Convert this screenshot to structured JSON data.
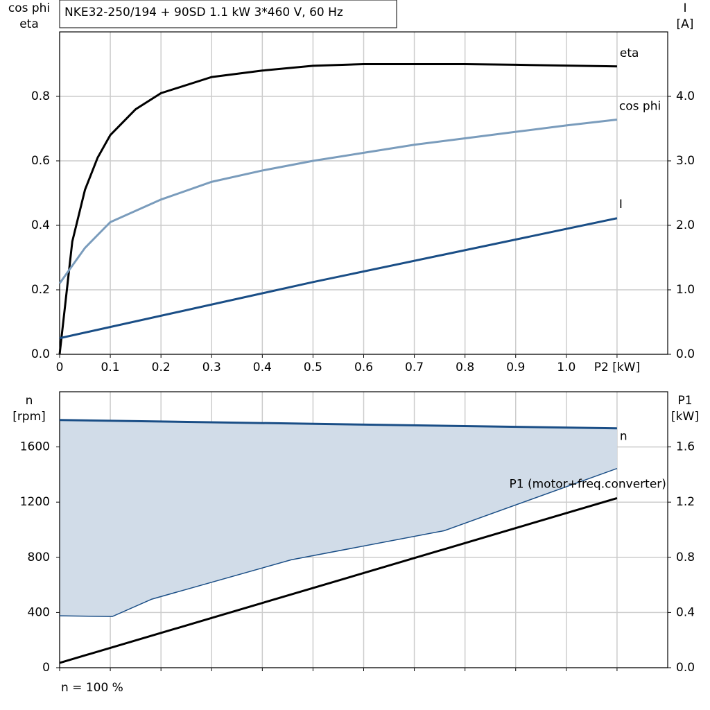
{
  "chart_data": [
    {
      "type": "line",
      "title": "NKE32-250/194 + 90SD   1.1 kW   3*460 V, 60 Hz",
      "ylabel": [
        "cos phi",
        "eta"
      ],
      "y2label": [
        "I",
        "[A]"
      ],
      "xlim": [
        0,
        1.2
      ],
      "xticks": [
        0,
        0.1,
        0.2,
        0.3,
        0.4,
        0.5,
        0.6,
        0.7,
        0.8,
        0.9,
        {
          "value": 1.0,
          "label": "1.0"
        },
        {
          "value": 1.1,
          "label": "P2 [kW]"
        }
      ],
      "ylim": [
        0,
        1.0
      ],
      "yticks": [
        {
          "value": 0,
          "label": "0.0"
        },
        0.2,
        0.4,
        0.6,
        0.8
      ],
      "y2lim": [
        0,
        5.0
      ],
      "y2ticks": [
        {
          "value": 0,
          "label": "0.0"
        },
        {
          "value": 1,
          "label": "1.0"
        },
        {
          "value": 2,
          "label": "2.0"
        },
        {
          "value": 3,
          "label": "3.0"
        },
        {
          "value": 4,
          "label": "4.0"
        }
      ],
      "grid": true,
      "series": [
        {
          "name": "eta",
          "color": "#000000",
          "x": [
            0,
            0.025,
            0.05,
            0.075,
            0.1,
            0.15,
            0.2,
            0.3,
            0.4,
            0.5,
            0.6,
            0.7,
            0.8,
            0.9,
            1.1
          ],
          "values": [
            0,
            0.35,
            0.51,
            0.61,
            0.68,
            0.76,
            0.81,
            0.86,
            0.88,
            0.895,
            0.9,
            0.9,
            0.9,
            0.898,
            0.893
          ]
        },
        {
          "name": "cos phi",
          "color": "#7a9cbc",
          "x": [
            0,
            0.05,
            0.1,
            0.2,
            0.3,
            0.4,
            0.5,
            0.6,
            0.7,
            0.8,
            0.9,
            1.0,
            1.1
          ],
          "values": [
            0.22,
            0.33,
            0.41,
            0.48,
            0.535,
            0.57,
            0.6,
            0.625,
            0.65,
            0.67,
            0.69,
            0.71,
            0.728
          ]
        },
        {
          "name": "I",
          "color": "#1a4e86",
          "axis": "y2",
          "x": [
            0,
            0.5,
            1.1
          ],
          "values": [
            0.25,
            1.12,
            2.11
          ]
        }
      ]
    },
    {
      "type": "line",
      "ylabel": [
        "n",
        "[rpm]"
      ],
      "y2label": [
        "P1",
        "[kW]"
      ],
      "note": "n = 100 %",
      "xlim": [
        0,
        1.2
      ],
      "xticks": [
        0,
        0.1,
        0.2,
        0.3,
        0.4,
        0.5,
        0.6,
        0.7,
        0.8,
        0.9,
        1.0,
        1.1
      ],
      "xtick_labels": false,
      "ylim": [
        0,
        2000
      ],
      "yticks": [
        0,
        400,
        800,
        1200,
        1600
      ],
      "y2lim": [
        0,
        2.0
      ],
      "y2ticks": [
        {
          "value": 0,
          "label": "0.0"
        },
        0.4,
        0.8,
        1.2,
        1.6
      ],
      "grid": true,
      "fill": "#d1dce8",
      "series": [
        {
          "name": "n",
          "color": "#1a4e86",
          "x": [
            0,
            1.1
          ],
          "values": [
            1795,
            1735
          ]
        },
        {
          "color": "#1a4e86",
          "x": [
            0,
            0.104,
            0.182,
            0.457,
            0.759,
            1.1
          ],
          "values": [
            376,
            371,
            497,
            782,
            993,
            1444
          ]
        },
        {
          "name": "P1 (motor+freq.converter)",
          "color": "#000000",
          "axis": "y2",
          "x": [
            0,
            1.1
          ],
          "values": [
            0.035,
            1.229
          ]
        }
      ]
    }
  ]
}
